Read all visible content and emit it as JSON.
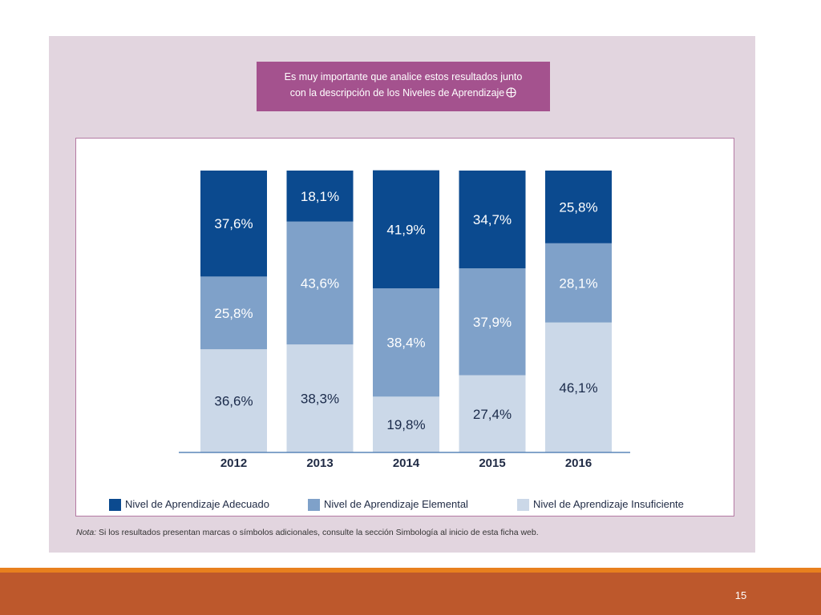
{
  "notice": {
    "line1": "Es muy importante que analice estos resultados junto",
    "line2": "con la descripción de los Niveles de Aprendizaje"
  },
  "note": {
    "prefix": "Nota:",
    "text": " Si los resultados presentan marcas o símbolos adicionales, consulte la sección Simbología al inicio de esta ficha web."
  },
  "page_number": "15",
  "colors": {
    "panel": "#e2d5df",
    "notice": "#a4528e",
    "adecuado": "#0b4a8f",
    "elemental": "#7fa1c9",
    "insuficiente": "#cbd8e8",
    "footer": "#bd582c",
    "accent": "#e8801e"
  },
  "chart_data": {
    "type": "bar",
    "stacked": true,
    "categories": [
      "2012",
      "2013",
      "2014",
      "2015",
      "2016"
    ],
    "series": [
      {
        "name": "Nivel de Aprendizaje Insuficiente",
        "values": [
          36.6,
          38.3,
          19.8,
          27.4,
          46.1
        ],
        "labels": [
          "36,6%",
          "38,3%",
          "19,8%",
          "27,4%",
          "46,1%"
        ],
        "color": "#cbd8e8"
      },
      {
        "name": "Nivel de Aprendizaje Elemental",
        "values": [
          25.8,
          43.6,
          38.4,
          37.9,
          28.1
        ],
        "labels": [
          "25,8%",
          "43,6%",
          "38,4%",
          "37,9%",
          "28,1%"
        ],
        "color": "#7fa1c9"
      },
      {
        "name": "Nivel de Aprendizaje Adecuado",
        "values": [
          37.6,
          18.1,
          41.9,
          34.7,
          25.8
        ],
        "labels": [
          "37,6%",
          "18,1%",
          "41,9%",
          "34,7%",
          "25,8%"
        ],
        "color": "#0b4a8f"
      }
    ],
    "ylim": [
      0,
      100
    ],
    "legend": [
      {
        "name": "Nivel de Aprendizaje Adecuado",
        "color": "#0b4a8f"
      },
      {
        "name": "Nivel de Aprendizaje Elemental",
        "color": "#7fa1c9"
      },
      {
        "name": "Nivel de Aprendizaje Insuficiente",
        "color": "#cbd8e8"
      }
    ],
    "legend_position": "bottom",
    "grid": false
  }
}
